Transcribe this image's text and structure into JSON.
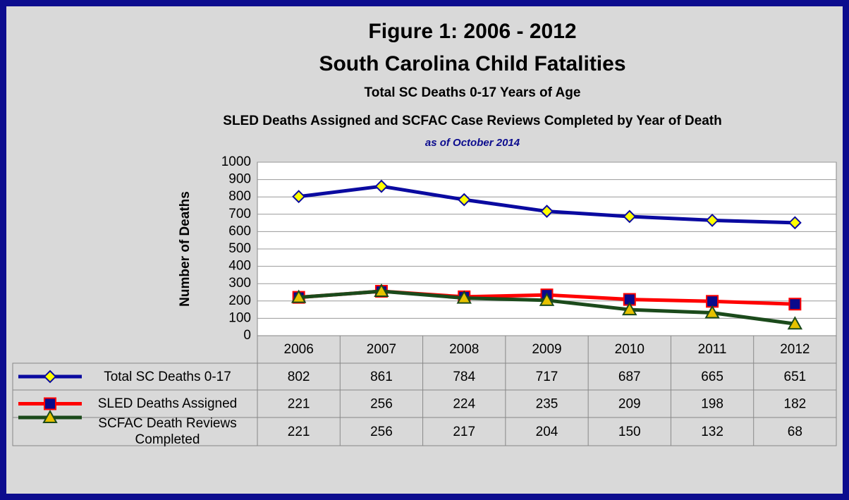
{
  "chart_data": {
    "type": "line",
    "title": [
      "Figure 1: 2006 - 2012",
      "South Carolina Child Fatalities"
    ],
    "subtitle": [
      "Total SC Deaths 0-17 Years of Age",
      "SLED Deaths Assigned and SCFAC Case Reviews Completed by Year of Death"
    ],
    "annotation": "as of October 2014",
    "y_label": "Number of Deaths",
    "categories": [
      "2006",
      "2007",
      "2008",
      "2009",
      "2010",
      "2011",
      "2012"
    ],
    "series": [
      {
        "name": "Total SC Deaths 0-17",
        "color": "#0a0aa0",
        "marker": "diamond",
        "marker_color": "#ffff00",
        "values": [
          802,
          861,
          784,
          717,
          687,
          665,
          651
        ]
      },
      {
        "name": "SLED Deaths Assigned",
        "color": "#ff0000",
        "marker": "square",
        "marker_color": "#0a0a8c",
        "values": [
          221,
          256,
          224,
          235,
          209,
          198,
          182
        ]
      },
      {
        "name": "SCFAC Death Reviews Completed",
        "color": "#1b4a1b",
        "marker": "triangle",
        "marker_color": "#e6c200",
        "values": [
          221,
          256,
          217,
          204,
          150,
          132,
          68
        ]
      }
    ],
    "ylim": [
      0,
      1000
    ],
    "yticks": [
      0,
      100,
      200,
      300,
      400,
      500,
      600,
      700,
      800,
      900,
      1000
    ],
    "grid": true
  }
}
